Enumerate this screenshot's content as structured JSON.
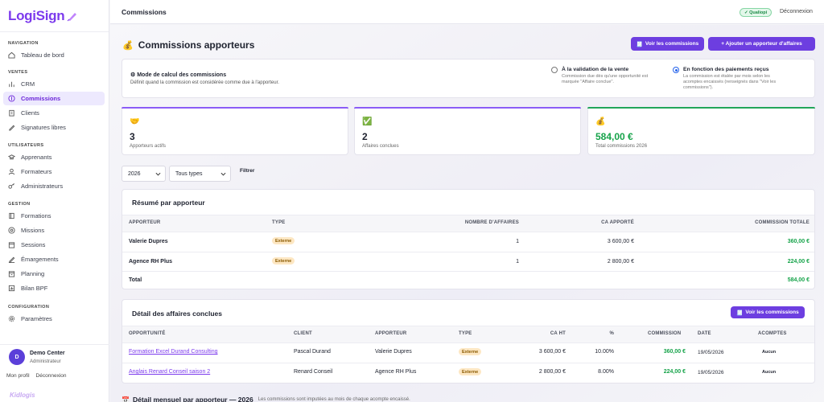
{
  "app": {
    "logo": "LogiSign",
    "footer_logo": "Kidlogis"
  },
  "sidebar": {
    "sections": [
      {
        "title": "NAVIGATION",
        "items": [
          {
            "label": "Tableau de bord",
            "icon": "home-icon"
          }
        ]
      },
      {
        "title": "VENTES",
        "items": [
          {
            "label": "CRM",
            "icon": "chart-icon"
          },
          {
            "label": "Commissions",
            "icon": "coin-icon",
            "active": true
          },
          {
            "label": "Clients",
            "icon": "building-icon"
          },
          {
            "label": "Signatures libres",
            "icon": "pen-icon"
          }
        ]
      },
      {
        "title": "UTILISATEURS",
        "items": [
          {
            "label": "Apprenants",
            "icon": "graduation-icon"
          },
          {
            "label": "Formateurs",
            "icon": "user-icon"
          },
          {
            "label": "Administrateurs",
            "icon": "key-icon"
          }
        ]
      },
      {
        "title": "GESTION",
        "items": [
          {
            "label": "Formations",
            "icon": "book-icon"
          },
          {
            "label": "Missions",
            "icon": "target-icon"
          },
          {
            "label": "Sessions",
            "icon": "calendar-icon"
          },
          {
            "label": "Émargements",
            "icon": "edit-icon"
          },
          {
            "label": "Planning",
            "icon": "calendar-icon"
          },
          {
            "label": "Bilan BPF",
            "icon": "bar-chart-icon"
          }
        ]
      },
      {
        "title": "CONFIGURATION",
        "items": [
          {
            "label": "Paramètres",
            "icon": "gear-icon"
          }
        ]
      }
    ],
    "user": {
      "initial": "D",
      "name": "Demo Center",
      "role": "Administrateur",
      "profile_link": "Mon profil",
      "logout_link": "Déconnexion"
    }
  },
  "topbar": {
    "title": "Commissions",
    "badge": "✓ Qualiopi",
    "logout": "Déconnexion"
  },
  "header": {
    "title": "Commissions apporteurs",
    "btn_view": "Voir les commissions",
    "btn_add": "+ Ajouter un apporteur d'affaires"
  },
  "mode": {
    "title": "⚙ Mode de calcul des commissions",
    "desc": "Définit quand la commission est considérée comme due à l'apporteur.",
    "option1": {
      "title": "À la validation de la vente",
      "desc1": "Commission due dès qu'une opportunité est",
      "desc2": "marquée \"Affaire conclue\"."
    },
    "option2": {
      "title": "En fonction des paiements reçus",
      "desc1": "La commission est étalée par mois selon les",
      "desc2": "acomptes encaissés (renseignés dans \"Voir les",
      "desc3": "commissions\")."
    }
  },
  "stats": [
    {
      "value": "3",
      "label": "Apporteurs actifs",
      "icon": "handshake-icon",
      "color": "#8b5cf6"
    },
    {
      "value": "2",
      "label": "Affaires conclues",
      "icon": "check-icon",
      "color": "#8b5cf6"
    },
    {
      "value": "584,00 €",
      "label": "Total commissions 2026",
      "icon": "money-bag-icon",
      "color": "#22a55a"
    }
  ],
  "filters": {
    "year": "2026",
    "type": "Tous types",
    "button": "Filtrer"
  },
  "summary": {
    "title": "Résumé par apporteur",
    "headers": [
      "APPORTEUR",
      "TYPE",
      "NOMBRE D'AFFAIRES",
      "CA APPORTÉ",
      "COMMISSION TOTALE"
    ],
    "rows": [
      {
        "name": "Valerie Dupres",
        "type": "Externe",
        "count": "1",
        "ca": "3 600,00 €",
        "commission": "360,00 €"
      },
      {
        "name": "Agence RH Plus",
        "type": "Externe",
        "count": "1",
        "ca": "2 800,00 €",
        "commission": "224,00 €"
      }
    ],
    "total_label": "Total",
    "total_value": "584,00 €"
  },
  "details": {
    "title": "Détail des affaires conclues",
    "button": "Voir les commissions",
    "headers": [
      "OPPORTUNITÉ",
      "CLIENT",
      "APPORTEUR",
      "TYPE",
      "CA HT",
      "%",
      "COMMISSION",
      "DATE",
      "ACOMPTES"
    ],
    "rows": [
      {
        "opp": "Formation Excel Durand Consulting",
        "client": "Pascal Durand",
        "apporteur": "Valerie Dupres",
        "type": "Externe",
        "ca": "3 600,00 €",
        "pct": "10.00%",
        "commission": "360,00 €",
        "date": "19/05/2026",
        "acomptes": "Aucun"
      },
      {
        "opp": "Anglais Renard Conseil saison 2",
        "client": "Renard Conseil",
        "apporteur": "Agence RH Plus",
        "type": "Externe",
        "ca": "2 800,00 €",
        "pct": "8.00%",
        "commission": "224,00 €",
        "date": "19/05/2026",
        "acomptes": "Aucun"
      }
    ]
  },
  "monthly": {
    "title": "Détail mensuel par apporteur — 2026",
    "note": "Les commissions sont imputées au mois de chaque acompte encaissé."
  }
}
